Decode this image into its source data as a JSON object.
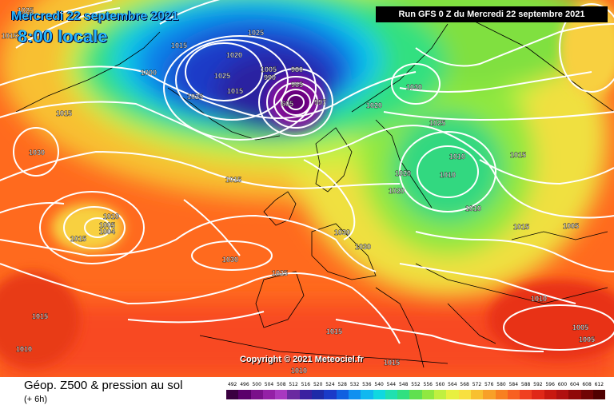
{
  "header": {
    "valid_date": "Mercredi 22 septembre 2021",
    "valid_time": "8:00 locale",
    "run_info": "Run GFS 0 Z du Mercredi 22 septembre 2021"
  },
  "copyright": "Copyright © 2021 Meteociel.fr",
  "footer": {
    "title": "Géop. Z500 & pression au sol",
    "subtitle": "(+ 6h)"
  },
  "scale": {
    "values": [
      "492",
      "496",
      "500",
      "504",
      "508",
      "512",
      "516",
      "520",
      "524",
      "528",
      "532",
      "536",
      "540",
      "544",
      "548",
      "552",
      "556",
      "560",
      "564",
      "568",
      "572",
      "576",
      "580",
      "584",
      "588",
      "592",
      "596",
      "600",
      "604",
      "608",
      "612"
    ],
    "colors": [
      "#3a0040",
      "#5a006a",
      "#7a108a",
      "#9420a6",
      "#a838c0",
      "#6a2aa0",
      "#3a20a0",
      "#1e2aa8",
      "#1a3ac8",
      "#1060e0",
      "#1090f0",
      "#10b8f0",
      "#10d8e0",
      "#20e0b0",
      "#30e080",
      "#60e050",
      "#90e840",
      "#c0f040",
      "#e8f040",
      "#f8e040",
      "#f8c030",
      "#f8a028",
      "#f88020",
      "#f86020",
      "#f04020",
      "#e02818",
      "#c81810",
      "#b01010",
      "#900808",
      "#700404",
      "#500000"
    ]
  },
  "colors": {
    "ocean_base": "#ff7a1e",
    "low_core": "#7a1090",
    "contour": "#ffffff"
  },
  "pressure_labels": [
    {
      "text": "1025"
    },
    {
      "text": "1015"
    },
    {
      "text": "1025"
    },
    {
      "text": "1015"
    },
    {
      "text": "1020"
    },
    {
      "text": "1000"
    },
    {
      "text": "1025"
    },
    {
      "text": "1005"
    },
    {
      "text": "990"
    },
    {
      "text": "980"
    },
    {
      "text": "965"
    },
    {
      "text": "605"
    },
    {
      "text": "997"
    },
    {
      "text": "1020"
    },
    {
      "text": "1025"
    },
    {
      "text": "1030"
    },
    {
      "text": "1015"
    },
    {
      "text": "1030"
    },
    {
      "text": "1025"
    },
    {
      "text": "1010"
    },
    {
      "text": "1010"
    },
    {
      "text": "1015"
    },
    {
      "text": "1020"
    },
    {
      "text": "1010"
    },
    {
      "text": "1005"
    },
    {
      "text": "1004"
    },
    {
      "text": "1015"
    },
    {
      "text": "1030"
    },
    {
      "text": "1030"
    },
    {
      "text": "1030"
    },
    {
      "text": "1025"
    },
    {
      "text": "1015"
    },
    {
      "text": "1015"
    },
    {
      "text": "1005"
    },
    {
      "text": "1010"
    },
    {
      "text": "1005"
    },
    {
      "text": "1005"
    },
    {
      "text": "1015"
    },
    {
      "text": "1010"
    },
    {
      "text": "1010"
    },
    {
      "text": "1015"
    },
    {
      "text": "1015"
    },
    {
      "text": "1010"
    },
    {
      "text": "1020"
    },
    {
      "text": "1015"
    }
  ]
}
